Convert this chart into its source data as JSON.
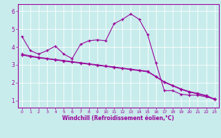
{
  "bg_color": "#c8ecec",
  "line_color": "#990099",
  "grid_color": "#ffffff",
  "xlabel": "Windchill (Refroidissement éolien,°C)",
  "xlim": [
    -0.5,
    23.5
  ],
  "ylim": [
    0.6,
    6.4
  ],
  "yticks": [
    1,
    2,
    3,
    4,
    5,
    6
  ],
  "xticks": [
    0,
    1,
    2,
    3,
    4,
    5,
    6,
    7,
    8,
    9,
    10,
    11,
    12,
    13,
    14,
    15,
    16,
    17,
    18,
    19,
    20,
    21,
    22,
    23
  ],
  "series1_x": [
    0,
    1,
    2,
    3,
    4,
    5,
    6,
    7,
    8,
    9,
    10,
    11,
    12,
    13,
    14,
    15,
    16,
    17,
    18,
    19,
    20,
    21,
    22,
    23
  ],
  "series1_y": [
    4.6,
    3.8,
    3.6,
    3.8,
    4.05,
    3.6,
    3.35,
    4.15,
    4.35,
    4.4,
    4.35,
    5.3,
    5.55,
    5.85,
    5.55,
    4.7,
    3.1,
    1.55,
    1.55,
    1.35,
    1.3,
    1.3,
    1.2,
    1.1
  ],
  "series2_x": [
    0,
    1,
    2,
    3,
    4,
    5,
    6,
    7,
    8,
    9,
    10,
    11,
    12,
    13,
    14,
    15,
    16,
    17,
    18,
    19,
    20,
    21,
    22,
    23
  ],
  "series2_y": [
    3.6,
    3.5,
    3.42,
    3.36,
    3.3,
    3.24,
    3.18,
    3.12,
    3.06,
    3.0,
    2.94,
    2.88,
    2.82,
    2.76,
    2.7,
    2.64,
    2.35,
    2.05,
    1.85,
    1.65,
    1.5,
    1.4,
    1.28,
    1.08
  ],
  "series3_x": [
    0,
    1,
    2,
    3,
    4,
    5,
    6,
    7,
    8,
    9,
    10,
    11,
    12,
    13,
    14,
    15,
    16,
    17,
    18,
    19,
    20,
    21,
    22,
    23
  ],
  "series3_y": [
    3.55,
    3.46,
    3.39,
    3.33,
    3.27,
    3.21,
    3.15,
    3.09,
    3.03,
    2.97,
    2.91,
    2.85,
    2.79,
    2.73,
    2.67,
    2.61,
    2.33,
    2.02,
    1.82,
    1.62,
    1.47,
    1.37,
    1.25,
    1.05
  ]
}
